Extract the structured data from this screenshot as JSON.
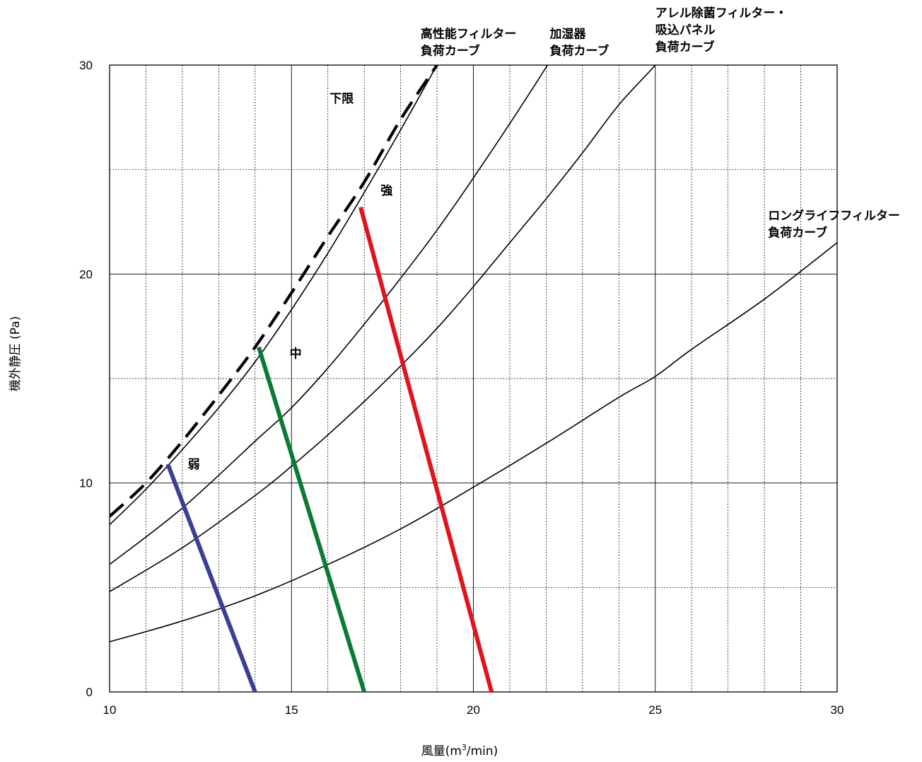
{
  "chart_data": {
    "type": "line",
    "xlabel_main": "風量(m",
    "xlabel_sup": "3",
    "xlabel_tail": "/min)",
    "ylabel": "機外静圧 (Pa)",
    "xlim": [
      10,
      30
    ],
    "ylim": [
      0,
      30
    ],
    "x_ticks": [
      "10",
      "15",
      "20",
      "25",
      "30"
    ],
    "y_ticks": [
      "0",
      "10",
      "20",
      "30"
    ],
    "grid": true,
    "load_curves": [
      {
        "label": [
          "高性能フィルター",
          "負荷カーブ"
        ],
        "points": [
          [
            10,
            8.0
          ],
          [
            11,
            9.7
          ],
          [
            12,
            11.6
          ],
          [
            13,
            13.6
          ],
          [
            14,
            15.8
          ],
          [
            15,
            18.3
          ],
          [
            16,
            21.0
          ],
          [
            17,
            23.9
          ],
          [
            18,
            26.9
          ],
          [
            19,
            30.0
          ],
          [
            19.35,
            31.1
          ]
        ]
      },
      {
        "label": [
          "加湿器",
          "負荷カーブ"
        ],
        "points": [
          [
            10,
            6.1
          ],
          [
            12,
            8.8
          ],
          [
            14,
            12.0
          ],
          [
            15,
            13.6
          ],
          [
            16,
            15.5
          ],
          [
            17,
            17.6
          ],
          [
            18,
            19.8
          ],
          [
            19,
            22.1
          ],
          [
            20,
            24.6
          ],
          [
            21,
            27.2
          ],
          [
            22,
            29.9
          ],
          [
            22.3,
            30.8
          ]
        ]
      },
      {
        "label": [
          "アレル除菌フィルター・",
          "吸込パネル",
          "負荷カーブ"
        ],
        "points": [
          [
            10,
            4.8
          ],
          [
            12,
            6.9
          ],
          [
            14,
            9.4
          ],
          [
            15,
            10.8
          ],
          [
            16,
            12.3
          ],
          [
            17,
            13.9
          ],
          [
            18,
            15.6
          ],
          [
            19,
            17.4
          ],
          [
            20,
            19.4
          ],
          [
            21,
            21.5
          ],
          [
            22,
            23.6
          ],
          [
            23,
            25.8
          ],
          [
            24,
            28.1
          ],
          [
            25,
            30.0
          ],
          [
            25.2,
            30.6
          ]
        ]
      },
      {
        "label": [
          "ロングライフフィルター",
          "負荷カーブ"
        ],
        "points": [
          [
            10,
            2.4
          ],
          [
            12,
            3.4
          ],
          [
            14,
            4.6
          ],
          [
            16,
            6.1
          ],
          [
            18,
            7.8
          ],
          [
            20,
            9.8
          ],
          [
            22,
            11.9
          ],
          [
            24,
            14.1
          ],
          [
            25,
            15.1
          ],
          [
            26,
            16.4
          ],
          [
            28,
            18.8
          ],
          [
            30,
            21.5
          ]
        ]
      }
    ],
    "lower_limit": {
      "label": "下限",
      "points": [
        [
          10,
          8.4
        ],
        [
          11,
          10.0
        ],
        [
          12,
          12.0
        ],
        [
          13,
          14.2
        ],
        [
          14,
          16.5
        ],
        [
          15,
          19.1
        ],
        [
          16,
          21.8
        ],
        [
          17,
          24.4
        ],
        [
          18,
          27.4
        ],
        [
          19,
          30.0
        ]
      ]
    },
    "fan_speeds": [
      {
        "label": "弱",
        "color": "#3a3f95",
        "start": [
          11.6,
          10.9
        ],
        "end": [
          14.0,
          0
        ]
      },
      {
        "label": "中",
        "color": "#0a7a36",
        "start": [
          14.1,
          16.5
        ],
        "end": [
          17.0,
          0
        ]
      },
      {
        "label": "強",
        "color": "#e0141b",
        "start": [
          16.9,
          23.2
        ],
        "end": [
          20.5,
          0
        ]
      }
    ],
    "label_anchors": {
      "高性能フィルター": [
        18.55,
        31.3
      ],
      "加湿器": [
        22.1,
        31.3
      ],
      "アレル除菌フィルター・": [
        25.0,
        32.3
      ],
      "ロングライフフィルター": [
        28.1,
        22.6
      ],
      "下限": [
        16.05,
        28.2
      ],
      "弱": [
        12.15,
        10.7
      ],
      "中": [
        14.95,
        16.0
      ],
      "強": [
        17.45,
        23.8
      ]
    }
  }
}
